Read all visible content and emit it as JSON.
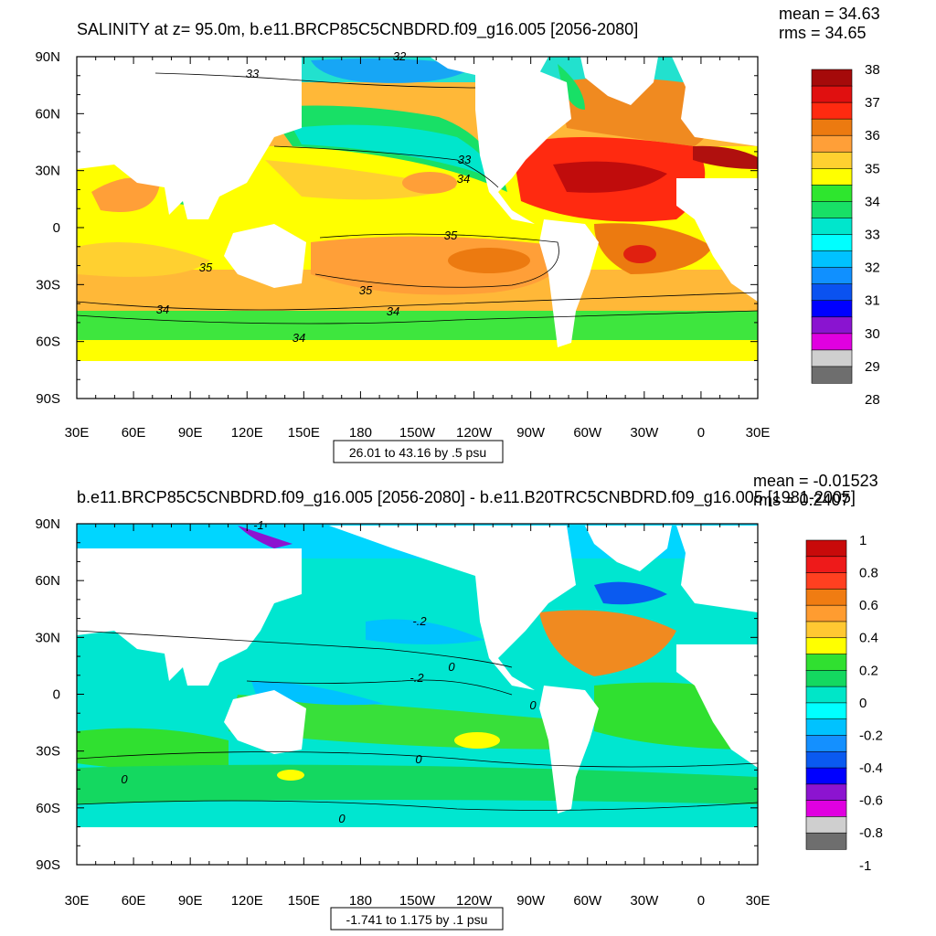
{
  "chart_data": [
    {
      "type": "heatmap",
      "title": "SALINITY at z=  95.0m, b.e11.BRCP85C5CNBDRD.f09_g16.005 [2056-2080]",
      "stats": {
        "mean": "mean = 34.63",
        "rms": "rms = 34.65"
      },
      "units": "psu",
      "x_ticks": [
        "30E",
        "60E",
        "90E",
        "120E",
        "150E",
        "180",
        "150W",
        "120W",
        "90W",
        "60W",
        "30W",
        "0",
        "30E"
      ],
      "y_ticks": [
        "90N",
        "60N",
        "30N",
        "0",
        "30S",
        "60S",
        "90S"
      ],
      "xlim": [
        30,
        390
      ],
      "ylim": [
        -90,
        90
      ],
      "colorbar": {
        "labels": [
          "38",
          "37",
          "36",
          "35",
          "34",
          "33",
          "32",
          "31",
          "30",
          "29",
          "28"
        ],
        "colors": [
          "#a50a0a",
          "#e01010",
          "#ff2a10",
          "#ec7a10",
          "#ff9f38",
          "#ffd030",
          "#ffff00",
          "#2ee62e",
          "#18e066",
          "#00e6cc",
          "#00ffff",
          "#00c2ff",
          "#1090ff",
          "#0a52f0",
          "#0000ff",
          "#8a14d0",
          "#e000e0",
          "#cfcfcf",
          "#6e6e6e"
        ]
      },
      "contour_labels": [
        "32",
        "33",
        "33",
        "34",
        "35",
        "35",
        "35",
        "34",
        "34",
        "34"
      ],
      "range_note": "26.01 to 43.16 by .5 psu"
    },
    {
      "type": "heatmap",
      "title": "b.e11.BRCP85C5CNBDRD.f09_g16.005 [2056-2080] - b.e11.B20TRC5CNBDRD.f09_g16.005 [1981-2005]",
      "stats": {
        "mean": "mean = -0.01523",
        "rms": "rms = 0.2407"
      },
      "units": "psu",
      "x_ticks": [
        "30E",
        "60E",
        "90E",
        "120E",
        "150E",
        "180",
        "150W",
        "120W",
        "90W",
        "60W",
        "30W",
        "0",
        "30E"
      ],
      "y_ticks": [
        "90N",
        "60N",
        "30N",
        "0",
        "30S",
        "60S",
        "90S"
      ],
      "xlim": [
        30,
        390
      ],
      "ylim": [
        -90,
        90
      ],
      "colorbar": {
        "labels": [
          "1",
          "0.8",
          "0.6",
          "0.4",
          "0.2",
          "0",
          "-0.2",
          "-0.4",
          "-0.6",
          "-0.8",
          "-1"
        ],
        "colors": [
          "#c80a0a",
          "#ee1a1a",
          "#ff4020",
          "#f07c12",
          "#ff9c30",
          "#ffc832",
          "#ffff00",
          "#30e030",
          "#14d860",
          "#00e6c8",
          "#00ffff",
          "#00c2ff",
          "#1490ff",
          "#0a5af0",
          "#0000ff",
          "#8c14d0",
          "#e000e0",
          "#cfcfcf",
          "#6e6e6e"
        ]
      },
      "contour_labels": [
        "-.2",
        "-.2",
        "0",
        "0",
        "0",
        "0",
        "0",
        "-1"
      ],
      "range_note": "-1.741 to 1.175 by .1 psu"
    }
  ]
}
